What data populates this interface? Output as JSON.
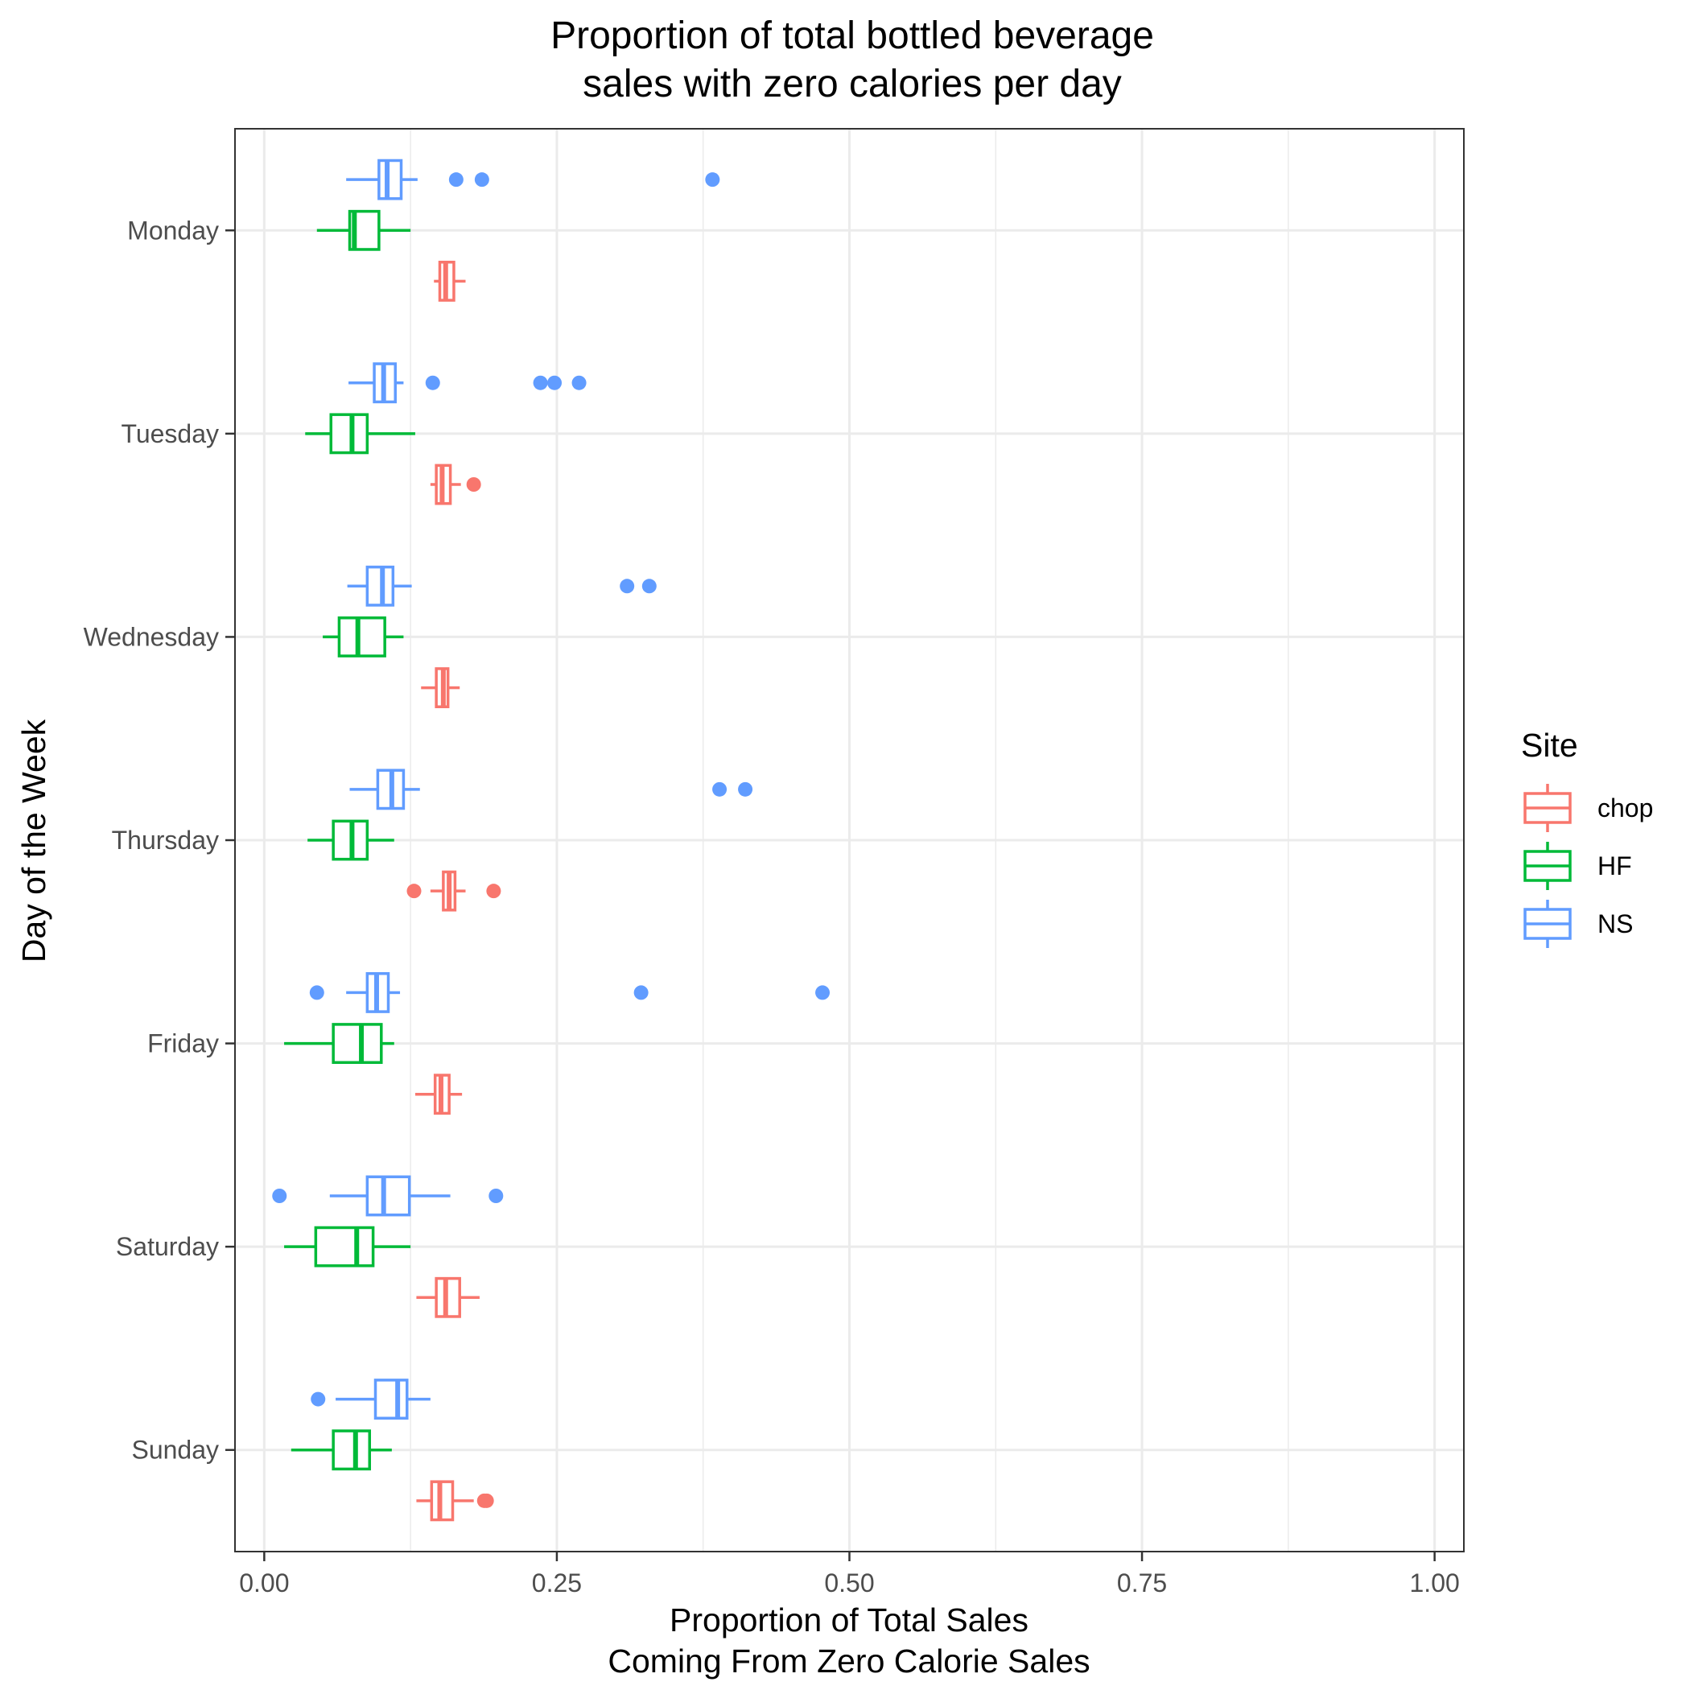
{
  "chart_data": {
    "type": "boxplot",
    "orientation": "horizontal",
    "title": [
      "Proportion of total bottled beverage",
      "sales with zero calories per day"
    ],
    "xlabel": [
      "Proportion of Total Sales",
      "Coming From Zero Calorie Sales"
    ],
    "ylabel": "Day of the Week",
    "xlim": [
      -0.025,
      1.025
    ],
    "x_ticks": [
      0.0,
      0.25,
      0.5,
      0.75,
      1.0
    ],
    "x_tick_labels": [
      "0.00",
      "0.25",
      "0.50",
      "0.75",
      "1.00"
    ],
    "categories": [
      "Monday",
      "Tuesday",
      "Wednesday",
      "Thursday",
      "Friday",
      "Saturday",
      "Sunday"
    ],
    "grid": true,
    "legend": {
      "title": "Site",
      "position": "right"
    },
    "series": [
      {
        "name": "chop",
        "color": "#F8766D",
        "boxes": [
          {
            "min": 0.145,
            "q1": 0.15,
            "median": 0.155,
            "q3": 0.162,
            "max": 0.172,
            "outliers": []
          },
          {
            "min": 0.142,
            "q1": 0.147,
            "median": 0.152,
            "q3": 0.159,
            "max": 0.168,
            "outliers": [
              0.179
            ]
          },
          {
            "min": 0.134,
            "q1": 0.147,
            "median": 0.153,
            "q3": 0.157,
            "max": 0.167,
            "outliers": []
          },
          {
            "min": 0.142,
            "q1": 0.153,
            "median": 0.158,
            "q3": 0.163,
            "max": 0.172,
            "outliers": [
              0.128,
              0.196
            ]
          },
          {
            "min": 0.129,
            "q1": 0.146,
            "median": 0.151,
            "q3": 0.158,
            "max": 0.169,
            "outliers": []
          },
          {
            "min": 0.13,
            "q1": 0.147,
            "median": 0.155,
            "q3": 0.167,
            "max": 0.184,
            "outliers": []
          },
          {
            "min": 0.13,
            "q1": 0.143,
            "median": 0.15,
            "q3": 0.161,
            "max": 0.179,
            "outliers": [
              0.188,
              0.19
            ]
          }
        ]
      },
      {
        "name": "HF",
        "color": "#00BA38",
        "boxes": [
          {
            "min": 0.045,
            "q1": 0.073,
            "median": 0.077,
            "q3": 0.098,
            "max": 0.125,
            "outliers": []
          },
          {
            "min": 0.035,
            "q1": 0.057,
            "median": 0.075,
            "q3": 0.088,
            "max": 0.129,
            "outliers": []
          },
          {
            "min": 0.05,
            "q1": 0.064,
            "median": 0.08,
            "q3": 0.103,
            "max": 0.119,
            "outliers": []
          },
          {
            "min": 0.037,
            "q1": 0.059,
            "median": 0.075,
            "q3": 0.088,
            "max": 0.111,
            "outliers": []
          },
          {
            "min": 0.017,
            "q1": 0.059,
            "median": 0.083,
            "q3": 0.1,
            "max": 0.111,
            "outliers": []
          },
          {
            "min": 0.017,
            "q1": 0.044,
            "median": 0.079,
            "q3": 0.093,
            "max": 0.125,
            "outliers": []
          },
          {
            "min": 0.023,
            "q1": 0.059,
            "median": 0.078,
            "q3": 0.09,
            "max": 0.109,
            "outliers": []
          }
        ]
      },
      {
        "name": "NS",
        "color": "#619CFF",
        "boxes": [
          {
            "min": 0.07,
            "q1": 0.098,
            "median": 0.105,
            "q3": 0.117,
            "max": 0.131,
            "outliers": [
              0.164,
              0.186,
              0.383
            ]
          },
          {
            "min": 0.072,
            "q1": 0.094,
            "median": 0.102,
            "q3": 0.112,
            "max": 0.119,
            "outliers": [
              0.144,
              0.236,
              0.248,
              0.269
            ]
          },
          {
            "min": 0.071,
            "q1": 0.088,
            "median": 0.101,
            "q3": 0.11,
            "max": 0.126,
            "outliers": [
              0.31,
              0.329
            ]
          },
          {
            "min": 0.073,
            "q1": 0.097,
            "median": 0.109,
            "q3": 0.119,
            "max": 0.133,
            "outliers": [
              0.389,
              0.411
            ]
          },
          {
            "min": 0.07,
            "q1": 0.088,
            "median": 0.096,
            "q3": 0.106,
            "max": 0.116,
            "outliers": [
              0.045,
              0.322,
              0.477
            ]
          },
          {
            "min": 0.056,
            "q1": 0.088,
            "median": 0.102,
            "q3": 0.124,
            "max": 0.159,
            "outliers": [
              0.013,
              0.198
            ]
          },
          {
            "min": 0.061,
            "q1": 0.095,
            "median": 0.114,
            "q3": 0.122,
            "max": 0.142,
            "outliers": [
              0.046
            ]
          }
        ]
      }
    ]
  }
}
